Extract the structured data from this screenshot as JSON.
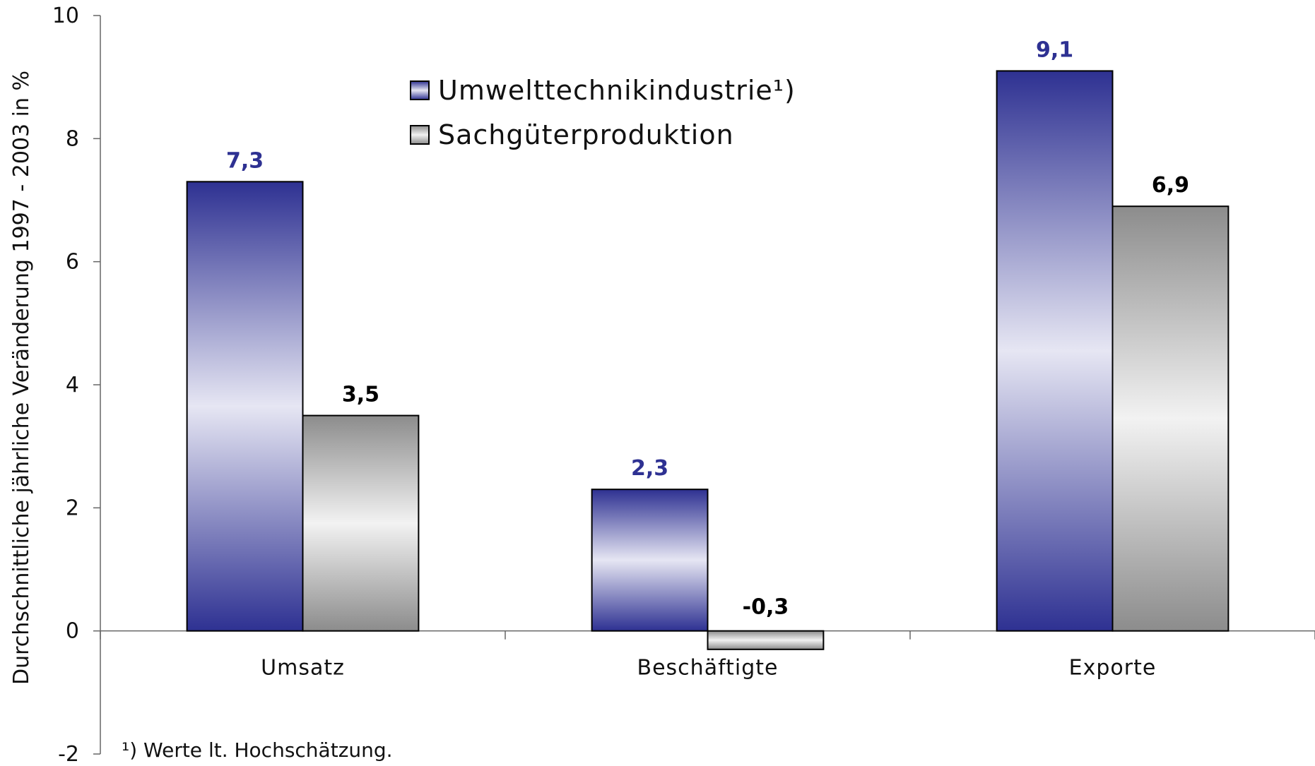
{
  "chart_data": {
    "type": "bar",
    "categories": [
      "Umsatz",
      "Beschäftigte",
      "Exporte"
    ],
    "series": [
      {
        "name": "Umwelttechnikindustrie¹)",
        "values": [
          7.3,
          2.3,
          9.1
        ],
        "labels": [
          "7,3",
          "2,3",
          "9,1"
        ],
        "color": "#2e3192",
        "label_color": "#2e3192"
      },
      {
        "name": "Sachgüterproduktion",
        "values": [
          3.5,
          -0.3,
          6.9
        ],
        "labels": [
          "3,5",
          "-0,3",
          "6,9"
        ],
        "color": "#8c8c8c",
        "label_color": "#000000"
      }
    ],
    "ylabel": "Durchschnittliche jährliche Veränderung 1997 - 2003 in %",
    "ylim": [
      -2,
      10
    ],
    "yticks": [
      -2,
      0,
      2,
      4,
      6,
      8,
      10
    ],
    "grid": false,
    "legend_position": "top-center",
    "footnote": "¹) Werte lt. Hochschätzung."
  }
}
